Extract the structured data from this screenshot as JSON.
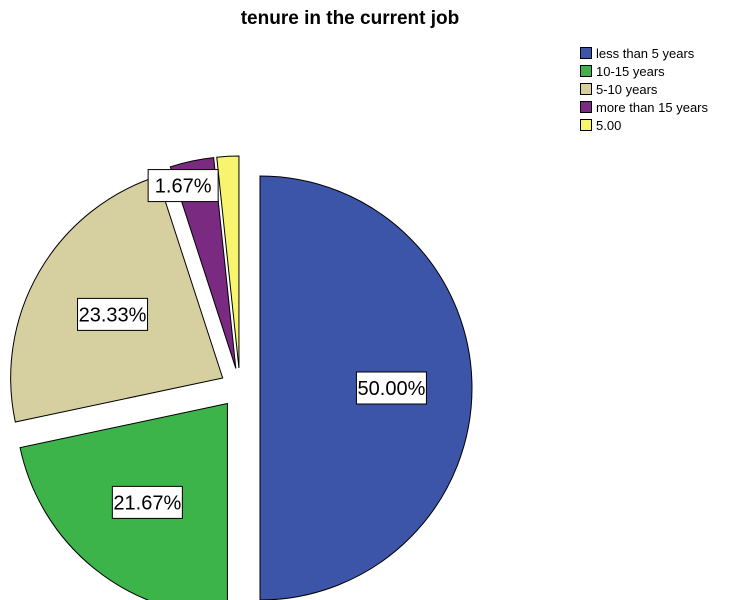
{
  "chart_data": {
    "type": "pie",
    "title": "tenure in the current job",
    "slices": [
      {
        "label": "less than 5 years",
        "value": 50.0,
        "display": "50.00%",
        "color": "#3d55a8"
      },
      {
        "label": "10-15 years",
        "value": 21.67,
        "display": "21.67%",
        "color": "#3cb44a"
      },
      {
        "label": "5-10 years",
        "value": 23.33,
        "display": "23.33%",
        "color": "#d6cfa0"
      },
      {
        "label": "more than 15 years",
        "value": 3.33,
        "display": "",
        "color": "#7b2a82"
      },
      {
        "label": "5.00",
        "value": 1.67,
        "display": "1.67%",
        "color": "#f7f46e"
      }
    ],
    "legend_position": "top-right",
    "exploded": true
  }
}
